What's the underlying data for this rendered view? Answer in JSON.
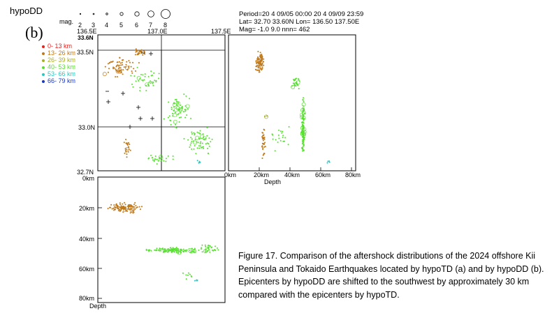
{
  "header": {
    "program": "hypoDD",
    "panel_letter": "(b)",
    "magnitude_label": "mag.",
    "magnitude_scale": [
      "2",
      "3",
      "4",
      "5",
      "6",
      "7",
      "8"
    ],
    "period_line": "Period=20 4 09/05 00:00  20 4 09/09 23:59",
    "lat_lon_line": "Lat= 32.70 33.60N  Lon= 136.50 137.50E",
    "mag_line": "Mag= -1.0  9.0  nnn=    462"
  },
  "legend": {
    "depth_classes": [
      {
        "label": "0- 13 km",
        "color": "#e8201c"
      },
      {
        "label": "13- 26 km",
        "color": "#c07818"
      },
      {
        "label": "26- 39 km",
        "color": "#a8b020"
      },
      {
        "label": "40- 53 km",
        "color": "#58e030"
      },
      {
        "label": "53- 66 km",
        "color": "#28c8c0"
      },
      {
        "label": "66- 79 km",
        "color": "#1838c0"
      }
    ]
  },
  "map": {
    "lon_ticks": [
      "136.5E",
      "137.0E",
      "137.5E"
    ],
    "lat_ticks": [
      "33.6N",
      "33.5N",
      "33.0N",
      "32.7N"
    ]
  },
  "ew_section": {
    "depth_ticks": [
      "0km",
      "20km",
      "40km",
      "60km",
      "80km"
    ],
    "axis_label": "Depth"
  },
  "ns_section": {
    "depth_ticks": [
      "0km",
      "20km",
      "40km",
      "60km",
      "80km"
    ],
    "axis_label": "Depth"
  },
  "caption": "Figure 17. Comparison of the aftershock distributions of the 2024 offshore Kii Peninsula and Tokaido Earthquakes located by hypoTD (a) and by hypoDD (b). Epicenters by hypoDD are shifted to the southwest by approximately 30 km compared with the epicenters by hypoTD."
}
